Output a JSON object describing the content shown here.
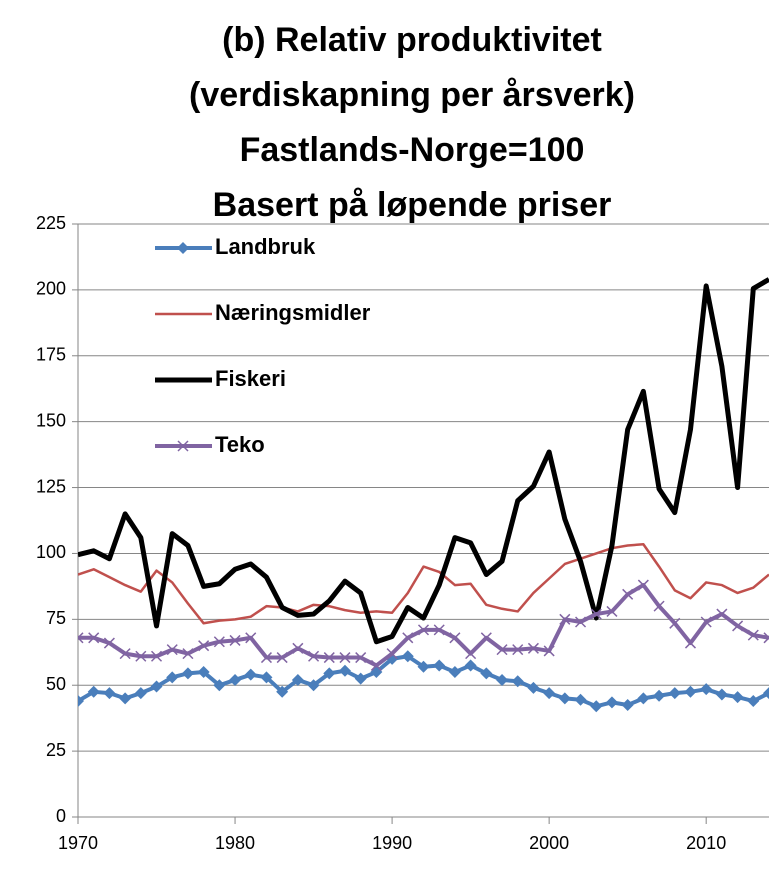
{
  "chart_data": {
    "type": "line",
    "title": [
      "(b) Relativ produktivitet",
      "(verdiskapning per årsverk)",
      "Fastlands-Norge=100",
      "Basert på løpende priser"
    ],
    "x": [
      1970,
      1971,
      1972,
      1973,
      1974,
      1975,
      1976,
      1977,
      1978,
      1979,
      1980,
      1981,
      1982,
      1983,
      1984,
      1985,
      1986,
      1987,
      1988,
      1989,
      1990,
      1991,
      1992,
      1993,
      1994,
      1995,
      1996,
      1997,
      1998,
      1999,
      2000,
      2001,
      2002,
      2003,
      2004,
      2005,
      2006,
      2007,
      2008,
      2009,
      2010,
      2011,
      2012,
      2013,
      2014
    ],
    "series": [
      {
        "name": "Landbruk",
        "color": "#4a7ebb",
        "marker": "diamond",
        "values": [
          44,
          47.5,
          47,
          45,
          47,
          49.5,
          53,
          54.5,
          55,
          50,
          52,
          54,
          53,
          47.5,
          52,
          50,
          54.5,
          55.5,
          52.5,
          55,
          60,
          61,
          57,
          57.5,
          55,
          57.5,
          54.5,
          52,
          51.5,
          49,
          47,
          45,
          44.5,
          42,
          43.5,
          42.5,
          45,
          46,
          47,
          47.5,
          48.5,
          46.5,
          45.5,
          44,
          47
        ]
      },
      {
        "name": "Næringsmidler",
        "color": "#c0504d",
        "values": [
          92,
          94,
          91,
          88,
          85.5,
          93.5,
          89,
          81,
          73.5,
          74.5,
          75,
          76,
          80,
          79.5,
          78,
          80.5,
          80,
          78.5,
          77.5,
          78,
          77.5,
          85,
          95,
          93,
          88,
          88.5,
          80.5,
          79,
          78,
          85,
          90.5,
          96,
          98,
          100,
          102,
          103,
          103.5,
          95,
          86,
          83,
          89,
          88,
          85,
          87,
          92
        ]
      },
      {
        "name": "Fiskeri",
        "color": "#000000",
        "values": [
          99.5,
          101,
          98,
          115,
          106,
          72.5,
          107.5,
          103,
          87.5,
          88.5,
          94,
          96,
          91,
          79.5,
          76.5,
          77,
          82,
          89.5,
          85,
          66.5,
          68.5,
          79.5,
          75.5,
          88,
          106,
          104,
          92,
          97,
          120,
          125.5,
          138.5,
          113,
          97,
          75.5,
          103,
          147,
          161.5,
          124.5,
          115.5,
          147,
          201.5,
          171,
          125,
          200.5,
          204
        ]
      },
      {
        "name": "Teko",
        "color": "#8064a2",
        "marker": "x",
        "values": [
          68,
          68,
          66,
          62,
          61,
          61,
          63.5,
          62,
          65,
          66.5,
          67,
          68,
          60.5,
          60.5,
          64,
          61,
          60.5,
          60.5,
          60.5,
          57.5,
          62,
          68,
          71,
          71,
          68,
          62,
          68,
          63.5,
          63.5,
          64,
          63,
          75,
          74,
          77,
          78,
          84.5,
          88,
          80,
          73.5,
          66,
          74,
          77,
          72.5,
          69,
          68
        ]
      }
    ],
    "xlim": [
      1970,
      2014
    ],
    "xticks": [
      1970,
      1980,
      1990,
      2000,
      2010
    ],
    "ylim": [
      0,
      225
    ],
    "yticks": [
      0,
      25,
      50,
      75,
      100,
      125,
      150,
      175,
      200,
      225
    ],
    "grid": true,
    "legend": "upper left"
  }
}
